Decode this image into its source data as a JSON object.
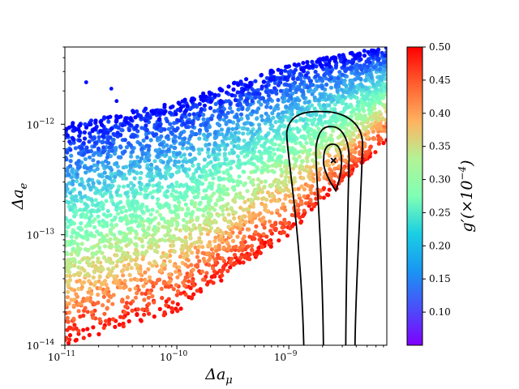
{
  "chart_data": {
    "type": "scatter",
    "title": "",
    "xlabel": "Δa",
    "xlabel_sub": "μ",
    "ylabel": "Δa",
    "ylabel_sub": "e",
    "xscale": "log",
    "yscale": "log",
    "xlim": [
      1e-11,
      7.5e-09
    ],
    "ylim": [
      1e-14,
      5e-12
    ],
    "x_ticks": [
      {
        "value": 1e-11,
        "base": "10",
        "exp": "−11"
      },
      {
        "value": 1e-10,
        "base": "10",
        "exp": "−10"
      },
      {
        "value": 1e-09,
        "base": "10",
        "exp": "−9"
      }
    ],
    "y_ticks": [
      {
        "value": 1e-14,
        "base": "10",
        "exp": "−14"
      },
      {
        "value": 1e-13,
        "base": "10",
        "exp": "−13"
      },
      {
        "value": 1e-12,
        "base": "10",
        "exp": "−12"
      }
    ],
    "colorbar": {
      "label": "g′(×10",
      "label_exp": "−4",
      "label_close": ")",
      "colormap": "rainbow",
      "range": [
        0.05,
        0.5
      ],
      "ticks": [
        "0.10",
        "0.15",
        "0.20",
        "0.25",
        "0.30",
        "0.35",
        "0.40",
        "0.45",
        "0.50"
      ]
    },
    "color_encoding": "g′ (×10^−4), 0.05 – 0.50",
    "band_summary": [
      {
        "x": 1e-11,
        "y_lower": 1e-14,
        "y_upper": 1e-12
      },
      {
        "x": 1e-10,
        "y_lower": 2e-14,
        "y_upper": 1.6e-12
      },
      {
        "x": 1e-09,
        "y_lower": 1e-13,
        "y_upper": 3.5e-12
      },
      {
        "x": 7e-09,
        "y_lower": 6.5e-13,
        "y_upper": 5e-12
      }
    ],
    "outliers": [
      {
        "x": 1.55e-11,
        "y": 2.4e-12,
        "g": 0.05
      },
      {
        "x": 2.6e-11,
        "y": 2.1e-12,
        "g": 0.06
      },
      {
        "x": 2.9e-11,
        "y": 1.62e-12,
        "g": 0.05
      },
      {
        "x": 9.2e-11,
        "y": 1.45e-12,
        "g": 0.06
      },
      {
        "x": 1.02e-10,
        "y": 1.35e-12,
        "g": 0.07
      }
    ],
    "contours": {
      "color": "#000000",
      "best_fit": {
        "x": 2.5e-09,
        "y": 4.7e-13,
        "marker": "x"
      },
      "levels": [
        {
          "x_left": 9.6e-10,
          "x_right": 4.55e-09,
          "y_top": 1.3e-12,
          "y_bottom": 1e-14
        },
        {
          "x_left": 1.75e-09,
          "x_right": 3.45e-09,
          "y_top": 9.5e-13,
          "y_bottom": 1e-14
        },
        {
          "x_left": 2.05e-09,
          "x_right": 3e-09,
          "y_top": 6.6e-13,
          "y_bottom": 2.5e-13
        }
      ]
    }
  }
}
